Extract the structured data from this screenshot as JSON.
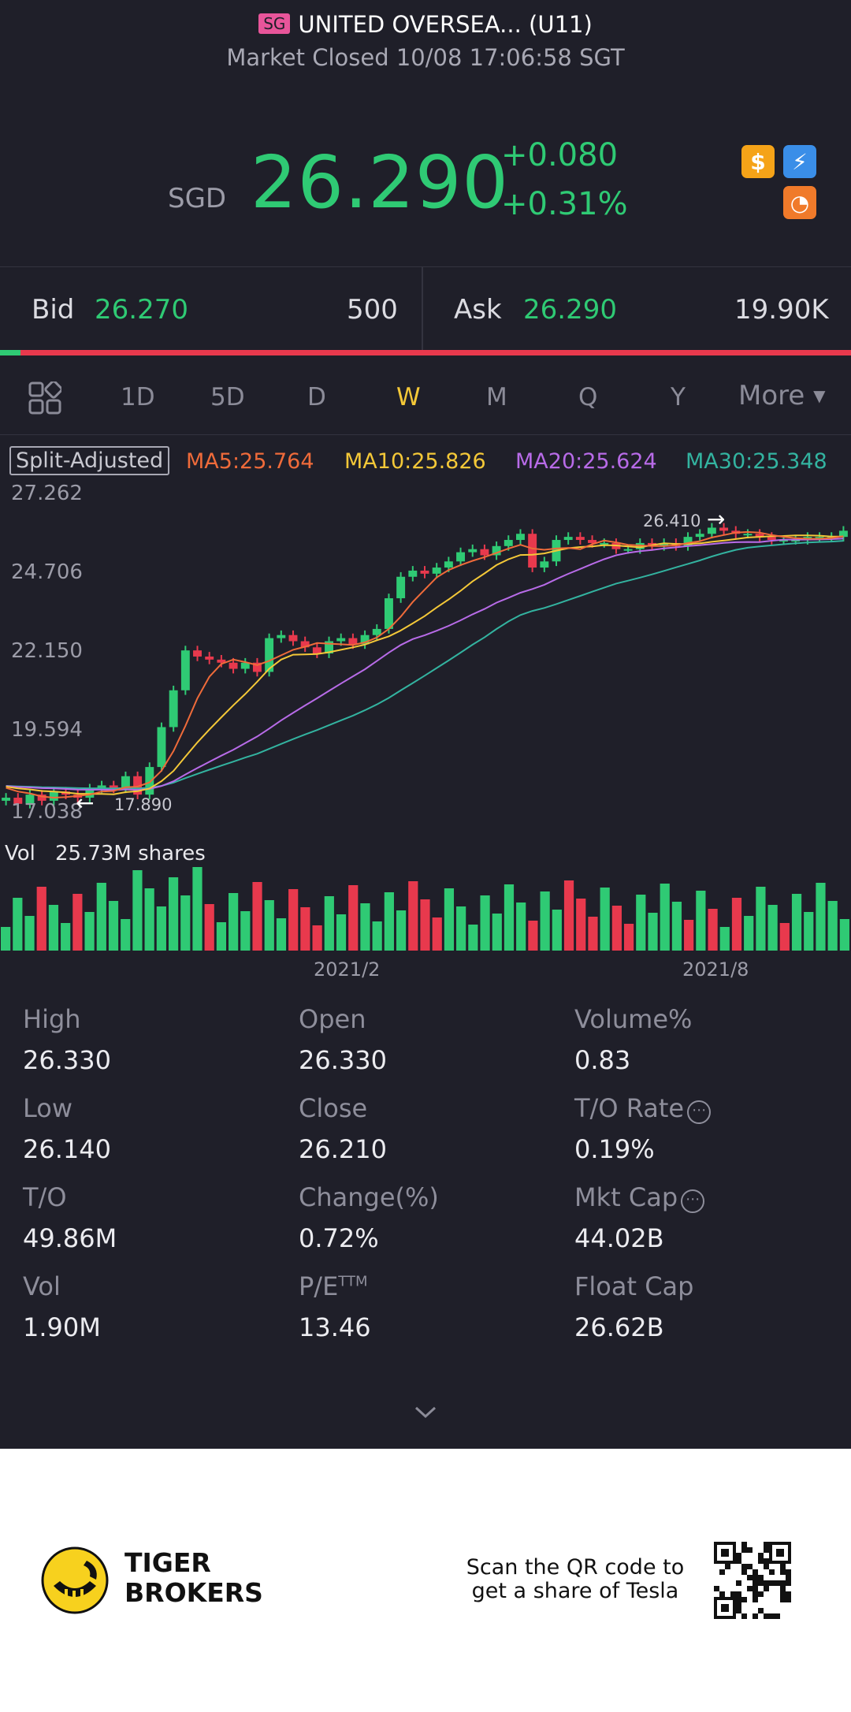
{
  "header": {
    "market_badge": "SG",
    "title": "UNITED OVERSEA... (U11)",
    "status": "Market Closed 10/08 17:06:58 SGT"
  },
  "quote": {
    "currency": "SGD",
    "price": "26.290",
    "change": "+0.080",
    "change_pct": "+0.31%",
    "up_color": "#2fca74",
    "down_color": "#e8394d"
  },
  "bid_ask": {
    "bid_label": "Bid",
    "bid_price": "26.270",
    "bid_size": "500",
    "ask_label": "Ask",
    "ask_price": "26.290",
    "ask_size": "19.90K"
  },
  "tabs": {
    "items": [
      "1D",
      "5D",
      "D",
      "W",
      "M",
      "Q",
      "Y"
    ],
    "active": "W",
    "more_label": "More"
  },
  "indicators": {
    "split_label": "Split-Adjusted",
    "ma5": "MA5:25.764",
    "ma10": "MA10:25.826",
    "ma20": "MA20:25.624",
    "ma30": "MA30:25.348",
    "colors": {
      "ma5": "#ef6b3a",
      "ma10": "#f4c838",
      "ma20": "#b86be8",
      "ma30": "#33b3a0"
    }
  },
  "chart_data": {
    "type": "candlestick",
    "y_ticks": [
      "27.262",
      "24.706",
      "22.150",
      "19.594",
      "17.038"
    ],
    "ylim": [
      17.038,
      27.262
    ],
    "high_label": "26.410",
    "low_label": "17.890",
    "x_ticks": [
      "2021/2",
      "2021/8"
    ],
    "volume_label": "Vol",
    "volume_value": "25.73M shares",
    "closes": [
      17.5,
      17.3,
      17.6,
      17.4,
      17.7,
      17.6,
      17.5,
      17.8,
      17.9,
      17.8,
      18.2,
      17.6,
      18.5,
      19.8,
      21.0,
      22.3,
      22.1,
      22.0,
      21.9,
      21.7,
      21.9,
      21.6,
      22.7,
      22.8,
      22.6,
      22.4,
      22.2,
      22.6,
      22.7,
      22.5,
      22.8,
      23.0,
      24.0,
      24.7,
      24.9,
      24.8,
      25.0,
      25.2,
      25.5,
      25.6,
      25.4,
      25.7,
      25.9,
      26.1,
      25.0,
      25.2,
      25.9,
      26.0,
      25.9,
      25.8,
      25.8,
      25.6,
      25.6,
      25.8,
      25.7,
      25.8,
      25.7,
      26.0,
      26.1,
      26.3,
      26.2,
      26.1,
      26.1,
      26.0,
      25.9,
      25.9,
      25.9,
      26.0,
      26.0,
      26.0,
      26.2
    ],
    "volume_bars_up": [
      true,
      true,
      true,
      false,
      true,
      true,
      false,
      true,
      true,
      true,
      true,
      true,
      true,
      true,
      true,
      true,
      true,
      false,
      true,
      true,
      true,
      false,
      true,
      true,
      false,
      false,
      false,
      true,
      true,
      false,
      true,
      true,
      true,
      true,
      false,
      false,
      false,
      true,
      true,
      true,
      true,
      true,
      true,
      true,
      false,
      true,
      true,
      false,
      false,
      false,
      true,
      false,
      false,
      true,
      true,
      true,
      true,
      false,
      true,
      false,
      true,
      false,
      true,
      true,
      true,
      false,
      true,
      true,
      true,
      true,
      true
    ]
  },
  "stats": [
    {
      "label": "High",
      "value": "26.330"
    },
    {
      "label": "Open",
      "value": "26.330"
    },
    {
      "label": "Volume%",
      "value": "0.83"
    },
    {
      "label": "Low",
      "value": "26.140"
    },
    {
      "label": "Close",
      "value": "26.210"
    },
    {
      "label": "T/O Rate",
      "value": "0.19%"
    },
    {
      "label": "T/O",
      "value": "49.86M"
    },
    {
      "label": "Change(%)",
      "value": "0.72%"
    },
    {
      "label": "Mkt Cap",
      "value": "44.02B"
    },
    {
      "label": "Vol",
      "value": "1.90M"
    },
    {
      "label": "P/E",
      "value": "13.46"
    },
    {
      "label": "Float Cap",
      "value": "26.62B"
    }
  ],
  "pe_superscript": "TTM",
  "footer": {
    "brand_line1": "TIGER",
    "brand_line2": "BROKERS",
    "scan_line1": "Scan the QR code to",
    "scan_line2": "get a share of Tesla"
  }
}
